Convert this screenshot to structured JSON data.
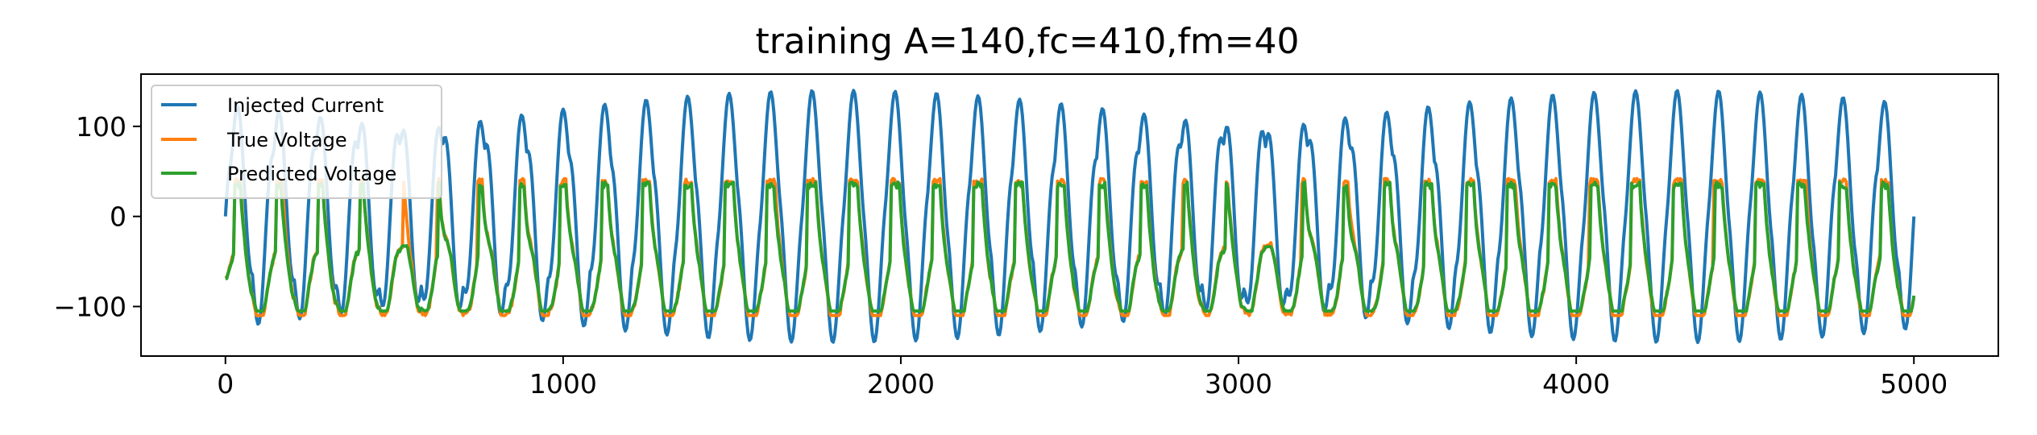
{
  "chart_data": {
    "type": "line",
    "title": "training A=140,fc=410,fm=40",
    "xlabel": "",
    "ylabel": "",
    "xlim": [
      -250,
      5250
    ],
    "ylim": [
      -155,
      158
    ],
    "xticks": [
      0,
      1000,
      2000,
      3000,
      4000,
      5000
    ],
    "xtick_labels": [
      "0",
      "1000",
      "2000",
      "3000",
      "4000",
      "5000"
    ],
    "yticks": [
      -100,
      0,
      100
    ],
    "ytick_labels": [
      "−100",
      "0",
      "100"
    ],
    "grid": false,
    "legend_position": "top-left",
    "x_range": [
      0,
      5000
    ],
    "samples": 1251,
    "series": [
      {
        "name": "Injected Current",
        "color": "#1f77b4",
        "amplitude": 140,
        "carrier_cycles": 41,
        "modulation_cycles": 4
      },
      {
        "name": "True Voltage",
        "color": "#ff7f0e",
        "min": -110,
        "max": 42,
        "baseline": -70
      },
      {
        "name": "Predicted Voltage",
        "color": "#2ca02c",
        "min": -105,
        "max": 38,
        "baseline": -70
      }
    ]
  }
}
